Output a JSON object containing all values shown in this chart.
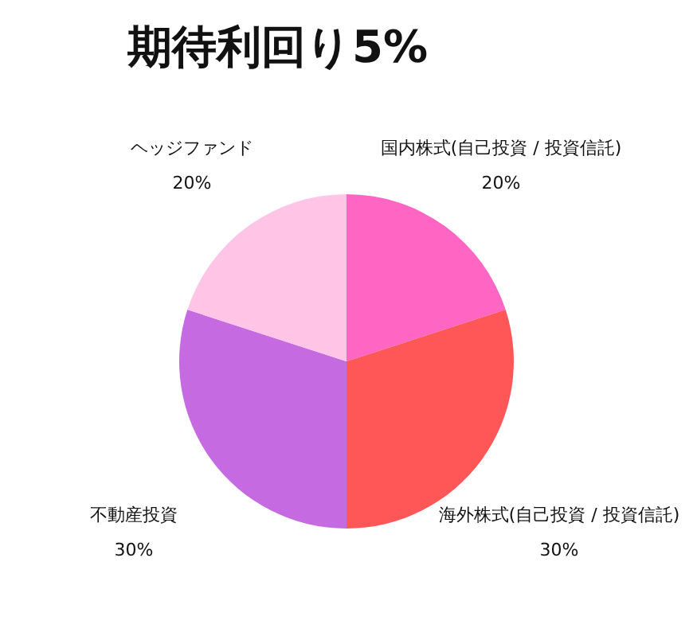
{
  "chart_data": {
    "type": "pie",
    "title": "期待利回り5%",
    "categories": [
      "国内株式(自己投資 / 投資信託)",
      "海外株式(自己投資 / 投資信託)",
      "不動産投資",
      "ヘッジファンド"
    ],
    "values": [
      20,
      30,
      30,
      20
    ],
    "value_labels": [
      "20%",
      "30%",
      "30%",
      "20%"
    ],
    "colors": [
      "#ff66c4",
      "#ff5757",
      "#c56ae0",
      "#ffc4e6"
    ],
    "legend": false
  }
}
